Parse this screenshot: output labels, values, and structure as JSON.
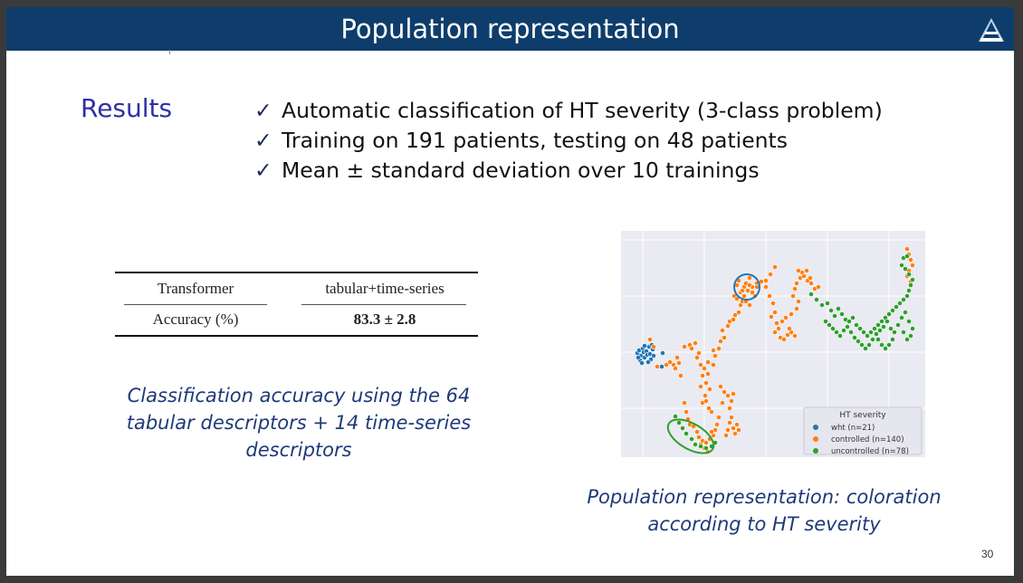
{
  "slide": {
    "title": "Population representation",
    "section_label": "Results",
    "bullets": [
      "Automatic classification of HT severity (3-class problem)",
      "Training on 191 patients, testing on 48 patients",
      "Mean ± standard deviation over 10 trainings"
    ],
    "bullet_marker": "✓",
    "page_number": "30",
    "logo_icon": "triangle-a-logo-icon"
  },
  "table": {
    "header": [
      "Transformer",
      "tabular+time-series"
    ],
    "row": [
      "Accuracy (%)",
      "83.3 ± 2.8"
    ]
  },
  "captions": {
    "left": "Classification accuracy using the 64 tabular descriptors + 14 time-series descriptors",
    "right": "Population representation: coloration according to HT severity"
  },
  "chart_data": {
    "type": "scatter",
    "title": "",
    "xlabel": "",
    "ylabel": "",
    "grid": true,
    "legend_placement": "bottom-right",
    "legend_title": "HT severity",
    "series": [
      {
        "name": "wht (n=21)",
        "color": "#1f77b4",
        "points": [
          [
            18,
            135
          ],
          [
            20,
            132
          ],
          [
            22,
            138
          ],
          [
            24,
            130
          ],
          [
            25,
            134
          ],
          [
            26,
            140
          ],
          [
            28,
            133
          ],
          [
            29,
            137
          ],
          [
            31,
            128
          ],
          [
            32,
            136
          ],
          [
            33,
            142
          ],
          [
            35,
            131
          ],
          [
            26,
            127
          ],
          [
            21,
            143
          ],
          [
            30,
            145
          ],
          [
            36,
            138
          ],
          [
            34,
            126
          ],
          [
            23,
            146
          ],
          [
            19,
            140
          ],
          [
            45,
            150
          ],
          [
            46,
            135
          ]
        ]
      },
      {
        "name": "controlled (n=140)",
        "color": "#ff7f0e",
        "points": [
          [
            32,
            120
          ],
          [
            36,
            128
          ],
          [
            40,
            150
          ],
          [
            50,
            148
          ],
          [
            58,
            148
          ],
          [
            64,
            146
          ],
          [
            70,
            128
          ],
          [
            76,
            126
          ],
          [
            82,
            124
          ],
          [
            78,
            130
          ],
          [
            84,
            140
          ],
          [
            88,
            148
          ],
          [
            86,
            135
          ],
          [
            92,
            152
          ],
          [
            90,
            160
          ],
          [
            88,
            172
          ],
          [
            94,
            168
          ],
          [
            96,
            158
          ],
          [
            98,
            175
          ],
          [
            93,
            182
          ],
          [
            90,
            190
          ],
          [
            94,
            188
          ],
          [
            97,
            196
          ],
          [
            100,
            200
          ],
          [
            96,
            145
          ],
          [
            102,
            148
          ],
          [
            104,
            138
          ],
          [
            102,
            132
          ],
          [
            108,
            130
          ],
          [
            110,
            122
          ],
          [
            114,
            118
          ],
          [
            112,
            110
          ],
          [
            118,
            105
          ],
          [
            120,
            100
          ],
          [
            124,
            98
          ],
          [
            126,
            93
          ],
          [
            130,
            90
          ],
          [
            132,
            82
          ],
          [
            134,
            78
          ],
          [
            136,
            72
          ],
          [
            140,
            66
          ],
          [
            145,
            62
          ],
          [
            150,
            58
          ],
          [
            155,
            56
          ],
          [
            160,
            55
          ],
          [
            165,
            48
          ],
          [
            170,
            40
          ],
          [
            125,
            72
          ],
          [
            128,
            60
          ],
          [
            130,
            55
          ],
          [
            132,
            68
          ],
          [
            136,
            62
          ],
          [
            138,
            58
          ],
          [
            142,
            60
          ],
          [
            145,
            68
          ],
          [
            148,
            72
          ],
          [
            150,
            62
          ],
          [
            138,
            78
          ],
          [
            142,
            82
          ],
          [
            134,
            66
          ],
          [
            128,
            75
          ],
          [
            142,
            52
          ],
          [
            160,
            62
          ],
          [
            164,
            72
          ],
          [
            168,
            80
          ],
          [
            170,
            90
          ],
          [
            166,
            95
          ],
          [
            172,
            102
          ],
          [
            174,
            108
          ],
          [
            170,
            112
          ],
          [
            176,
            118
          ],
          [
            180,
            120
          ],
          [
            184,
            115
          ],
          [
            188,
            112
          ],
          [
            192,
            116
          ],
          [
            186,
            108
          ],
          [
            178,
            100
          ],
          [
            182,
            96
          ],
          [
            188,
            92
          ],
          [
            194,
            86
          ],
          [
            196,
            78
          ],
          [
            190,
            72
          ],
          [
            192,
            64
          ],
          [
            194,
            58
          ],
          [
            198,
            52
          ],
          [
            200,
            46
          ],
          [
            196,
            44
          ],
          [
            202,
            50
          ],
          [
            206,
            55
          ],
          [
            210,
            58
          ],
          [
            214,
            64
          ],
          [
            218,
            62
          ],
          [
            205,
            44
          ],
          [
            209,
            52
          ],
          [
            70,
            190
          ],
          [
            72,
            200
          ],
          [
            74,
            208
          ],
          [
            76,
            214
          ],
          [
            80,
            216
          ],
          [
            84,
            222
          ],
          [
            86,
            228
          ],
          [
            90,
            232
          ],
          [
            94,
            234
          ],
          [
            98,
            230
          ],
          [
            102,
            226
          ],
          [
            88,
            236
          ],
          [
            92,
            240
          ],
          [
            96,
            244
          ],
          [
            118,
            220
          ],
          [
            120,
            212
          ],
          [
            122,
            206
          ],
          [
            124,
            218
          ],
          [
            126,
            224
          ],
          [
            128,
            214
          ],
          [
            130,
            220
          ],
          [
            116,
            226
          ],
          [
            120,
            196
          ],
          [
            122,
            188
          ],
          [
            118,
            182
          ],
          [
            124,
            180
          ],
          [
            114,
            178
          ],
          [
            110,
            172
          ],
          [
            112,
            190
          ],
          [
            108,
            206
          ],
          [
            106,
            214
          ],
          [
            104,
            220
          ],
          [
            100,
            222
          ],
          [
            60,
            152
          ],
          [
            54,
            145
          ],
          [
            66,
            160
          ],
          [
            62,
            140
          ],
          [
            316,
            20
          ],
          [
            318,
            26
          ],
          [
            320,
            32
          ],
          [
            322,
            38
          ],
          [
            318,
            44
          ],
          [
            316,
            50
          ],
          [
            320,
            56
          ]
        ]
      },
      {
        "name": "uncontrolled (n=78)",
        "color": "#2ca02c",
        "points": [
          [
            60,
            205
          ],
          [
            64,
            212
          ],
          [
            68,
            218
          ],
          [
            72,
            224
          ],
          [
            78,
            230
          ],
          [
            82,
            236
          ],
          [
            88,
            238
          ],
          [
            94,
            240
          ],
          [
            100,
            238
          ],
          [
            104,
            234
          ],
          [
            210,
            70
          ],
          [
            216,
            76
          ],
          [
            222,
            82
          ],
          [
            228,
            80
          ],
          [
            232,
            88
          ],
          [
            236,
            94
          ],
          [
            240,
            86
          ],
          [
            244,
            92
          ],
          [
            248,
            98
          ],
          [
            252,
            100
          ],
          [
            256,
            96
          ],
          [
            260,
            104
          ],
          [
            264,
            108
          ],
          [
            268,
            112
          ],
          [
            272,
            116
          ],
          [
            276,
            112
          ],
          [
            280,
            108
          ],
          [
            284,
            104
          ],
          [
            288,
            100
          ],
          [
            292,
            96
          ],
          [
            296,
            92
          ],
          [
            300,
            88
          ],
          [
            304,
            84
          ],
          [
            308,
            80
          ],
          [
            312,
            76
          ],
          [
            316,
            72
          ],
          [
            318,
            66
          ],
          [
            320,
            60
          ],
          [
            322,
            54
          ],
          [
            318,
            48
          ],
          [
            314,
            42
          ],
          [
            310,
            38
          ],
          [
            312,
            30
          ],
          [
            316,
            28
          ],
          [
            226,
            100
          ],
          [
            230,
            104
          ],
          [
            234,
            108
          ],
          [
            238,
            112
          ],
          [
            242,
            116
          ],
          [
            246,
            110
          ],
          [
            250,
            106
          ],
          [
            254,
            112
          ],
          [
            258,
            118
          ],
          [
            262,
            122
          ],
          [
            266,
            126
          ],
          [
            270,
            130
          ],
          [
            274,
            126
          ],
          [
            278,
            120
          ],
          [
            282,
            114
          ],
          [
            286,
            110
          ],
          [
            290,
            106
          ],
          [
            294,
            100
          ],
          [
            298,
            108
          ],
          [
            302,
            112
          ],
          [
            306,
            104
          ],
          [
            310,
            96
          ],
          [
            314,
            90
          ],
          [
            318,
            100
          ],
          [
            322,
            108
          ],
          [
            320,
            116
          ],
          [
            316,
            120
          ],
          [
            312,
            112
          ],
          [
            300,
            120
          ],
          [
            296,
            126
          ],
          [
            292,
            130
          ],
          [
            288,
            126
          ],
          [
            284,
            120
          ]
        ]
      }
    ]
  }
}
